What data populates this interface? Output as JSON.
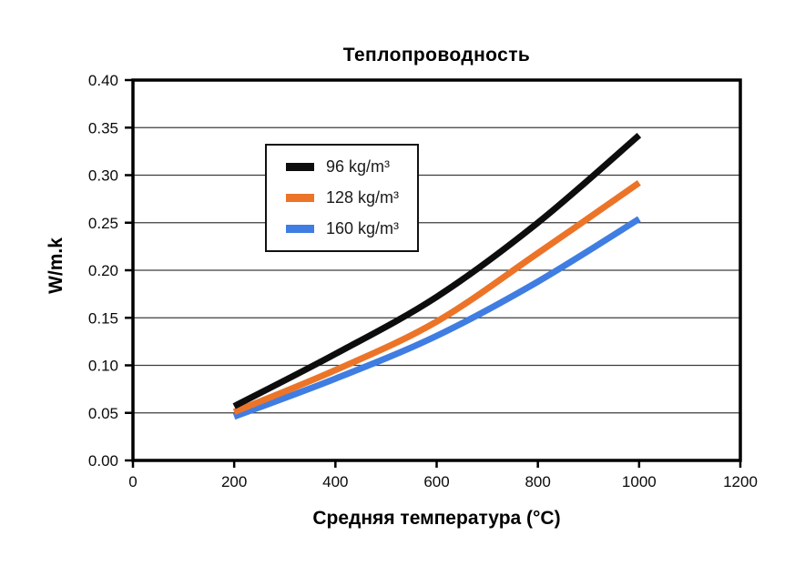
{
  "chart_data": {
    "type": "line",
    "title": "Теплопроводность",
    "xlabel": "Средняя температура (°C)",
    "ylabel": "W/m.k",
    "x": [
      200,
      400,
      600,
      800,
      1000
    ],
    "series": [
      {
        "name": "96 kg/m³",
        "color": "#0d0d0d",
        "values": [
          0.057,
          0.112,
          0.172,
          0.25,
          0.342
        ]
      },
      {
        "name": "128 kg/m³",
        "color": "#ec7428",
        "values": [
          0.051,
          0.095,
          0.146,
          0.218,
          0.292
        ]
      },
      {
        "name": "160 kg/m³",
        "color": "#3f7de2",
        "values": [
          0.046,
          0.086,
          0.131,
          0.188,
          0.254
        ]
      }
    ],
    "xlim": [
      0,
      1200
    ],
    "ylim": [
      0,
      0.4
    ],
    "x_ticks": [
      0,
      200,
      400,
      600,
      800,
      1000,
      1200
    ],
    "y_tick_labels": [
      "0.00",
      "0.05",
      "0.10",
      "0.15",
      "0.20",
      "0.25",
      "0.30",
      "0.35",
      "0.40"
    ],
    "grid": "horizontal-only",
    "legend_position": "inside-upper-left"
  }
}
